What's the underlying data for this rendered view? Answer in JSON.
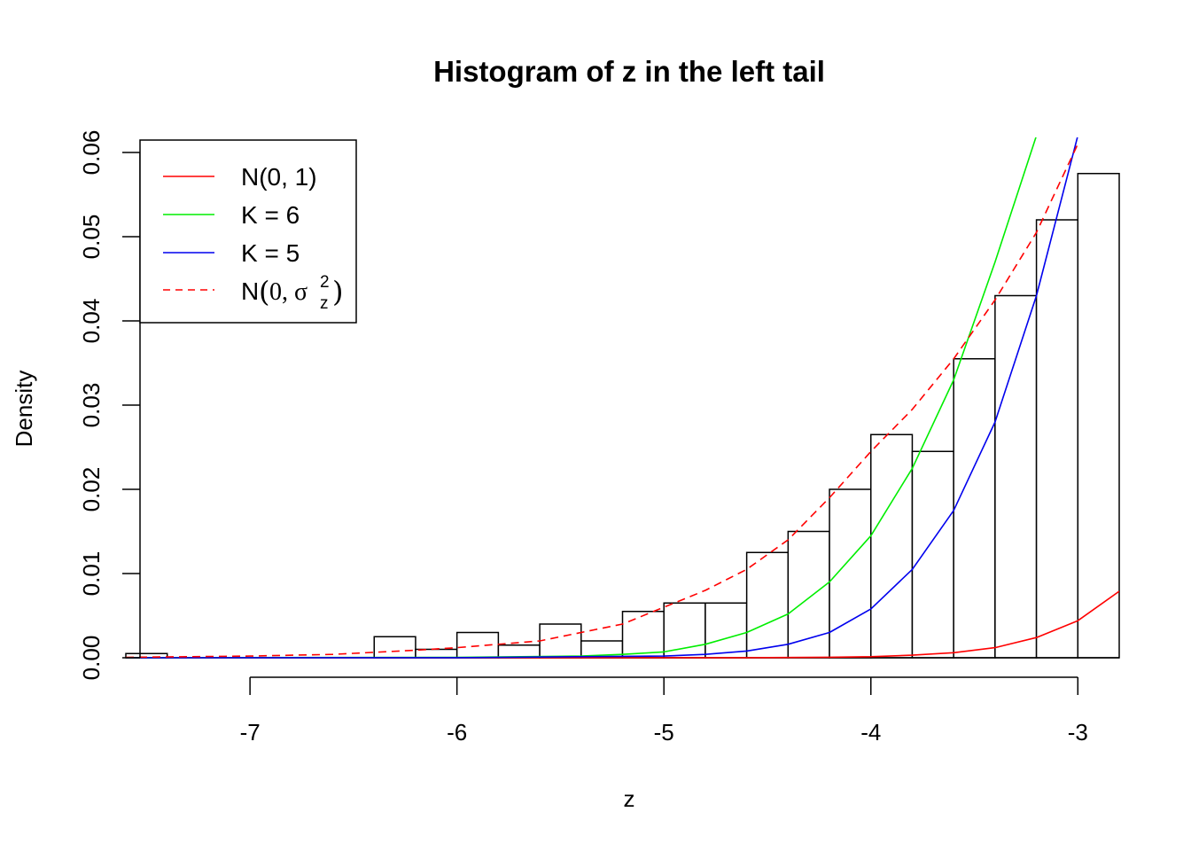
{
  "chart_data": {
    "type": "histogram",
    "title": "Histogram of z in the left tail",
    "xlabel": "z",
    "ylabel": "Density",
    "xlim": [
      -7.6,
      -2.8
    ],
    "ylim": [
      0,
      0.06
    ],
    "x_ticks": [
      -7,
      -6,
      -5,
      -4,
      -3
    ],
    "x_tick_labels": [
      "-7",
      "-6",
      "-5",
      "-4",
      "-3"
    ],
    "y_ticks": [
      0,
      0.01,
      0.02,
      0.03,
      0.04,
      0.05,
      0.06
    ],
    "y_tick_labels": [
      "0.00",
      "0.01",
      "0.02",
      "0.03",
      "0.04",
      "0.05",
      "0.06"
    ],
    "bin_width": 0.2,
    "bars": [
      {
        "x0": -7.6,
        "x1": -7.4,
        "density": 0.0005
      },
      {
        "x0": -6.4,
        "x1": -6.2,
        "density": 0.0025
      },
      {
        "x0": -6.2,
        "x1": -6.0,
        "density": 0.001
      },
      {
        "x0": -6.0,
        "x1": -5.8,
        "density": 0.003
      },
      {
        "x0": -5.8,
        "x1": -5.6,
        "density": 0.0015
      },
      {
        "x0": -5.6,
        "x1": -5.4,
        "density": 0.004
      },
      {
        "x0": -5.4,
        "x1": -5.2,
        "density": 0.002
      },
      {
        "x0": -5.2,
        "x1": -5.0,
        "density": 0.0055
      },
      {
        "x0": -5.0,
        "x1": -4.8,
        "density": 0.0065
      },
      {
        "x0": -4.8,
        "x1": -4.6,
        "density": 0.0065
      },
      {
        "x0": -4.6,
        "x1": -4.4,
        "density": 0.0125
      },
      {
        "x0": -4.4,
        "x1": -4.2,
        "density": 0.015
      },
      {
        "x0": -4.2,
        "x1": -4.0,
        "density": 0.02
      },
      {
        "x0": -4.0,
        "x1": -3.8,
        "density": 0.0265
      },
      {
        "x0": -3.8,
        "x1": -3.6,
        "density": 0.0245
      },
      {
        "x0": -3.6,
        "x1": -3.4,
        "density": 0.0355
      },
      {
        "x0": -3.4,
        "x1": -3.2,
        "density": 0.043
      },
      {
        "x0": -3.2,
        "x1": -3.0,
        "density": 0.052
      },
      {
        "x0": -3.0,
        "x1": -2.8,
        "density": 0.0575
      }
    ],
    "series": [
      {
        "name": "N(0, 1)",
        "color": "#ff0000",
        "dash": false,
        "x": [
          -7.6,
          -7.0,
          -6.0,
          -5.0,
          -4.6,
          -4.2,
          -4.0,
          -3.8,
          -3.6,
          -3.4,
          -3.2,
          -3.0,
          -2.8
        ],
        "y": [
          0.0,
          0.0,
          0.0,
          0.0,
          1e-05,
          6e-05,
          0.00013,
          0.0003,
          0.0006,
          0.0012,
          0.0024,
          0.0044,
          0.0079
        ]
      },
      {
        "name": "K = 6",
        "color": "#00ee00",
        "dash": false,
        "x": [
          -7.6,
          -6.0,
          -5.4,
          -5.2,
          -5.0,
          -4.8,
          -4.6,
          -4.4,
          -4.2,
          -4.0,
          -3.8,
          -3.6,
          -3.4,
          -3.2
        ],
        "y": [
          0.0,
          5e-05,
          0.0002,
          0.0004,
          0.0007,
          0.0016,
          0.003,
          0.0052,
          0.009,
          0.0145,
          0.0225,
          0.033,
          0.047,
          0.062
        ]
      },
      {
        "name": "K = 5",
        "color": "#0000ee",
        "dash": false,
        "x": [
          -7.6,
          -6.0,
          -5.0,
          -4.8,
          -4.6,
          -4.4,
          -4.2,
          -4.0,
          -3.8,
          -3.6,
          -3.4,
          -3.2,
          -3.0
        ],
        "y": [
          0.0,
          1e-05,
          0.0002,
          0.0004,
          0.0008,
          0.0016,
          0.003,
          0.0058,
          0.0105,
          0.0175,
          0.028,
          0.043,
          0.062
        ]
      },
      {
        "name": "N(0, σ_z^2)",
        "color": "#ff0000",
        "dash": true,
        "x": [
          -7.6,
          -7.0,
          -6.6,
          -6.2,
          -6.0,
          -5.6,
          -5.2,
          -5.0,
          -4.8,
          -4.6,
          -4.4,
          -4.2,
          -4.0,
          -3.8,
          -3.6,
          -3.4,
          -3.2,
          -3.0
        ],
        "y": [
          5e-05,
          0.0002,
          0.0004,
          0.0009,
          0.0012,
          0.002,
          0.004,
          0.006,
          0.008,
          0.0105,
          0.014,
          0.019,
          0.0245,
          0.0295,
          0.0355,
          0.0425,
          0.0505,
          0.061
        ]
      }
    ],
    "legend": {
      "position": "top-left",
      "entries": [
        {
          "label": "N(0, 1)",
          "color": "#ff0000",
          "dash": false
        },
        {
          "label": "K = 6",
          "color": "#00ee00",
          "dash": false
        },
        {
          "label": "K = 5",
          "color": "#0000ee",
          "dash": false
        },
        {
          "label_main": "N",
          "label_open": "(",
          "label_rest": "0, σ",
          "label_sup": "2",
          "label_sub": "z",
          "label_close": ")",
          "color": "#ff0000",
          "dash": true
        }
      ]
    }
  }
}
